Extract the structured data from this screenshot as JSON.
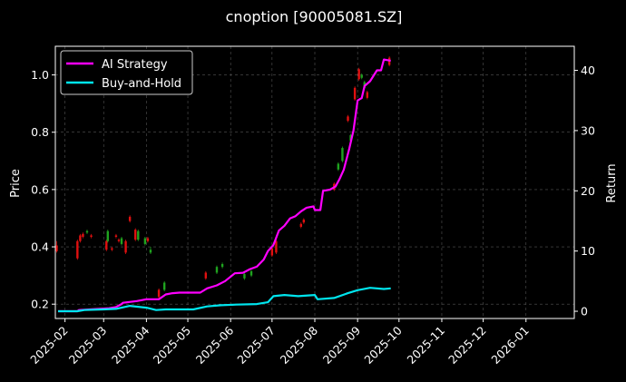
{
  "chart_data": {
    "type": "line",
    "title": "cnoption [90005081.SZ]",
    "ylabel_left": "Price",
    "ylabel_right": "Return",
    "x_ticks": [
      "2025-02",
      "2025-03",
      "2025-04",
      "2025-05",
      "2025-06",
      "2025-07",
      "2025-08",
      "2025-09",
      "2025-10",
      "2025-11",
      "2025-12",
      "2026-01"
    ],
    "x_range": [
      "2025-01-25",
      "2026-02-05"
    ],
    "y_left_ticks": [
      "0.2",
      "0.4",
      "0.6",
      "0.8",
      "1.0"
    ],
    "y_left_range": [
      0.15,
      1.1
    ],
    "y_right_ticks": [
      "0",
      "10",
      "20",
      "30",
      "40"
    ],
    "y_right_range": [
      -1.2,
      44.0
    ],
    "grid": true,
    "legend": "top-left",
    "colors": {
      "ai_strategy": "#ff00ff",
      "buy_and_hold": "#00e5ee",
      "candle_up": "#1fa31f",
      "candle_down": "#e01010",
      "grid": "#555555",
      "background": "#000000"
    },
    "series": [
      {
        "name": "AI Strategy",
        "axis": "right",
        "points": [
          [
            "2025-01-27",
            0.0
          ],
          [
            "2025-02-10",
            0.0
          ],
          [
            "2025-02-11",
            0.2
          ],
          [
            "2025-03-05",
            0.5
          ],
          [
            "2025-03-10",
            0.7
          ],
          [
            "2025-03-14",
            1.2
          ],
          [
            "2025-03-15",
            1.4
          ],
          [
            "2025-03-25",
            1.7
          ],
          [
            "2025-04-01",
            2.0
          ],
          [
            "2025-04-10",
            2.0
          ],
          [
            "2025-04-15",
            2.8
          ],
          [
            "2025-04-20",
            3.0
          ],
          [
            "2025-04-25",
            3.1
          ],
          [
            "2025-05-10",
            3.1
          ],
          [
            "2025-05-15",
            3.8
          ],
          [
            "2025-05-22",
            4.3
          ],
          [
            "2025-05-28",
            5.0
          ],
          [
            "2025-06-04",
            6.3
          ],
          [
            "2025-06-10",
            6.4
          ],
          [
            "2025-06-15",
            7.0
          ],
          [
            "2025-06-20",
            7.4
          ],
          [
            "2025-06-25",
            8.6
          ],
          [
            "2025-06-28",
            10.0
          ],
          [
            "2025-07-02",
            11.0
          ],
          [
            "2025-07-06",
            13.4
          ],
          [
            "2025-07-10",
            14.2
          ],
          [
            "2025-07-14",
            15.4
          ],
          [
            "2025-07-18",
            15.8
          ],
          [
            "2025-07-22",
            16.6
          ],
          [
            "2025-07-26",
            17.2
          ],
          [
            "2025-07-31",
            17.4
          ],
          [
            "2025-08-01",
            16.8
          ],
          [
            "2025-08-05",
            16.8
          ],
          [
            "2025-08-07",
            20.0
          ],
          [
            "2025-08-12",
            20.2
          ],
          [
            "2025-08-16",
            20.7
          ],
          [
            "2025-08-19",
            22.0
          ],
          [
            "2025-08-22",
            23.5
          ],
          [
            "2025-08-26",
            27.0
          ],
          [
            "2025-08-29",
            30.0
          ],
          [
            "2025-09-01",
            35.0
          ],
          [
            "2025-09-04",
            35.4
          ],
          [
            "2025-09-06",
            37.4
          ],
          [
            "2025-09-10",
            38.2
          ],
          [
            "2025-09-15",
            40.0
          ],
          [
            "2025-09-18",
            40.0
          ],
          [
            "2025-09-20",
            41.8
          ],
          [
            "2025-09-25",
            41.6
          ]
        ]
      },
      {
        "name": "Buy-and-Hold",
        "axis": "right",
        "points": [
          [
            "2025-01-27",
            0.0
          ],
          [
            "2025-02-10",
            0.0
          ],
          [
            "2025-02-15",
            0.2
          ],
          [
            "2025-03-01",
            0.3
          ],
          [
            "2025-03-10",
            0.4
          ],
          [
            "2025-03-20",
            0.9
          ],
          [
            "2025-04-01",
            0.6
          ],
          [
            "2025-04-08",
            0.2
          ],
          [
            "2025-04-15",
            0.3
          ],
          [
            "2025-05-05",
            0.3
          ],
          [
            "2025-05-15",
            0.8
          ],
          [
            "2025-05-25",
            1.0
          ],
          [
            "2025-06-05",
            1.1
          ],
          [
            "2025-06-20",
            1.2
          ],
          [
            "2025-06-28",
            1.5
          ],
          [
            "2025-07-02",
            2.5
          ],
          [
            "2025-07-10",
            2.7
          ],
          [
            "2025-07-20",
            2.5
          ],
          [
            "2025-08-01",
            2.7
          ],
          [
            "2025-08-03",
            2.0
          ],
          [
            "2025-08-15",
            2.2
          ],
          [
            "2025-08-25",
            3.0
          ],
          [
            "2025-09-01",
            3.5
          ],
          [
            "2025-09-10",
            3.9
          ],
          [
            "2025-09-20",
            3.7
          ],
          [
            "2025-09-25",
            3.8
          ]
        ]
      }
    ],
    "candles": [
      [
        "2025-01-26",
        0.405,
        0.385,
        0.42,
        0.38
      ],
      [
        "2025-02-10",
        0.42,
        0.36,
        0.425,
        0.355
      ],
      [
        "2025-02-12",
        0.44,
        0.42,
        0.445,
        0.415
      ],
      [
        "2025-02-14",
        0.445,
        0.435,
        0.45,
        0.43
      ],
      [
        "2025-02-17",
        0.45,
        0.455,
        0.46,
        0.445
      ],
      [
        "2025-02-20",
        0.44,
        0.435,
        0.445,
        0.43
      ],
      [
        "2025-03-03",
        0.42,
        0.39,
        0.425,
        0.385
      ],
      [
        "2025-03-04",
        0.42,
        0.455,
        0.46,
        0.415
      ],
      [
        "2025-03-07",
        0.395,
        0.39,
        0.4,
        0.385
      ],
      [
        "2025-03-10",
        0.44,
        0.435,
        0.445,
        0.43
      ],
      [
        "2025-03-12",
        0.425,
        0.42,
        0.43,
        0.415
      ],
      [
        "2025-03-14",
        0.41,
        0.43,
        0.435,
        0.405
      ],
      [
        "2025-03-17",
        0.42,
        0.38,
        0.425,
        0.375
      ],
      [
        "2025-03-20",
        0.505,
        0.49,
        0.51,
        0.485
      ],
      [
        "2025-03-24",
        0.46,
        0.425,
        0.465,
        0.42
      ],
      [
        "2025-03-26",
        0.425,
        0.455,
        0.46,
        0.42
      ],
      [
        "2025-03-31",
        0.41,
        0.43,
        0.435,
        0.405
      ],
      [
        "2025-04-02",
        0.43,
        0.42,
        0.435,
        0.415
      ],
      [
        "2025-04-04",
        0.38,
        0.39,
        0.4,
        0.375
      ],
      [
        "2025-04-10",
        0.25,
        0.225,
        0.255,
        0.22
      ],
      [
        "2025-04-14",
        0.25,
        0.275,
        0.28,
        0.245
      ],
      [
        "2025-05-14",
        0.31,
        0.29,
        0.315,
        0.285
      ],
      [
        "2025-05-22",
        0.31,
        0.33,
        0.335,
        0.305
      ],
      [
        "2025-05-26",
        0.33,
        0.34,
        0.345,
        0.325
      ],
      [
        "2025-06-11",
        0.29,
        0.305,
        0.31,
        0.285
      ],
      [
        "2025-06-16",
        0.3,
        0.315,
        0.32,
        0.295
      ],
      [
        "2025-07-01",
        0.395,
        0.37,
        0.4,
        0.365
      ],
      [
        "2025-07-04",
        0.42,
        0.38,
        0.425,
        0.375
      ],
      [
        "2025-07-22",
        0.48,
        0.47,
        0.485,
        0.465
      ],
      [
        "2025-07-24",
        0.495,
        0.485,
        0.5,
        0.48
      ],
      [
        "2025-08-15",
        0.62,
        0.6,
        0.625,
        0.595
      ],
      [
        "2025-08-18",
        0.67,
        0.69,
        0.695,
        0.665
      ],
      [
        "2025-08-21",
        0.7,
        0.745,
        0.75,
        0.695
      ],
      [
        "2025-08-25",
        0.855,
        0.84,
        0.86,
        0.835
      ],
      [
        "2025-08-27",
        0.77,
        0.79,
        0.795,
        0.765
      ],
      [
        "2025-08-30",
        0.955,
        0.915,
        0.96,
        0.91
      ],
      [
        "2025-09-02",
        1.02,
        0.985,
        1.025,
        0.98
      ],
      [
        "2025-09-04",
        0.99,
        1.0,
        1.005,
        0.985
      ],
      [
        "2025-09-06",
        0.955,
        0.975,
        0.98,
        0.95
      ],
      [
        "2025-09-08",
        0.94,
        0.92,
        0.945,
        0.915
      ],
      [
        "2025-09-24",
        1.06,
        1.035,
        1.065,
        1.03
      ]
    ]
  }
}
